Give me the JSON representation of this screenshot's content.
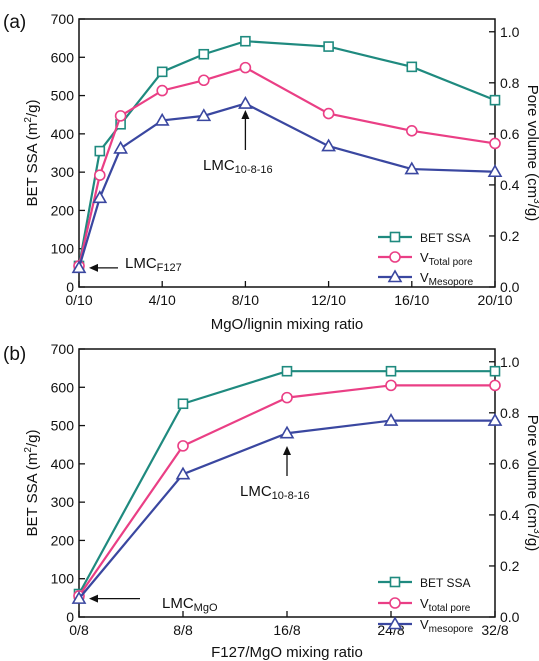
{
  "chart_data": [
    {
      "type": "line",
      "panel_label": "(a)",
      "xlabel": "MgO/lignin mixing ratio",
      "ylabel_left": {
        "main": "BET SSA (m",
        "sup": "2",
        "end": "/g)"
      },
      "ylabel_right": {
        "main": "Pore volume (cm",
        "sup": "3",
        "end": "/g)"
      },
      "categories": [
        "0/10",
        "1/10",
        "2/10",
        "4/10",
        "6/10",
        "8/10",
        "12/10",
        "16/10",
        "20/10"
      ],
      "xticks": [
        "0/10",
        "4/10",
        "8/10",
        "12/10",
        "16/10",
        "20/10"
      ],
      "xlim": [
        0,
        20
      ],
      "x": [
        0,
        1,
        2,
        4,
        6,
        8,
        12,
        16,
        20
      ],
      "ylim_left": [
        0,
        700
      ],
      "yticks_left": [
        0,
        100,
        200,
        300,
        400,
        500,
        600,
        700
      ],
      "ylim_right": [
        0.0,
        1.05
      ],
      "yticks_right": [
        0.0,
        0.2,
        0.4,
        0.6,
        0.8,
        1.0
      ],
      "grid": false,
      "legend_position": "bottom-right",
      "series": [
        {
          "name": "BET SSA",
          "name_main": "BET SSA",
          "name_sub": "",
          "axis": "left",
          "color": "#1f8a7f",
          "marker": "square",
          "values": [
            55,
            355,
            425,
            562,
            608,
            642,
            628,
            575,
            488
          ]
        },
        {
          "name": "VTotal pore",
          "name_main": "V",
          "name_sub": "Total pore",
          "axis": "left",
          "color": "#ea3f85",
          "marker": "circle",
          "values": [
            55,
            292,
            447,
            513,
            540,
            573,
            453,
            408,
            375
          ]
        },
        {
          "name": "VMesopore",
          "name_main": "V",
          "name_sub": "Mesopore",
          "axis": "left",
          "color": "#3a47a0",
          "marker": "triangle",
          "values": [
            50,
            233,
            362,
            435,
            447,
            479,
            368,
            308,
            301
          ]
        }
      ],
      "annotations": [
        {
          "main": "LMC",
          "sub": "F127"
        },
        {
          "main": "LMC",
          "sub": "10-8-16"
        }
      ]
    },
    {
      "type": "line",
      "panel_label": "(b)",
      "xlabel": "F127/MgO mixing ratio",
      "ylabel_left": {
        "main": "BET SSA (m",
        "sup": "2",
        "end": "/g)"
      },
      "ylabel_right": {
        "main": "Pore volume (cm",
        "sup": "3",
        "end": "/g)"
      },
      "categories": [
        "0/8",
        "8/8",
        "16/8",
        "24/8",
        "32/8"
      ],
      "xticks": [
        "0/8",
        "8/8",
        "16/8",
        "24/8",
        "32/8"
      ],
      "xlim": [
        0,
        32
      ],
      "x": [
        0,
        8,
        16,
        24,
        32
      ],
      "ylim_left": [
        0,
        700
      ],
      "yticks_left": [
        0,
        100,
        200,
        300,
        400,
        500,
        600,
        700
      ],
      "ylim_right": [
        0.0,
        1.05
      ],
      "yticks_right": [
        0.0,
        0.2,
        0.4,
        0.6,
        0.8,
        1.0
      ],
      "grid": false,
      "legend_position": "bottom-right",
      "series": [
        {
          "name": "BET SSA",
          "name_main": "BET SSA",
          "name_sub": "",
          "axis": "left",
          "color": "#1f8a7f",
          "marker": "square",
          "values": [
            60,
            557,
            642,
            642,
            642
          ]
        },
        {
          "name": "Vtotal pore",
          "name_main": "V",
          "name_sub": "total pore",
          "axis": "left",
          "color": "#ea3f85",
          "marker": "circle",
          "values": [
            55,
            447,
            573,
            605,
            605
          ]
        },
        {
          "name": "Vmesopore",
          "name_main": "V",
          "name_sub": "mesopore",
          "axis": "left",
          "color": "#3a47a0",
          "marker": "triangle",
          "values": [
            48,
            373,
            480,
            513,
            513
          ]
        }
      ],
      "annotations": [
        {
          "main": "LMC",
          "sub": "10-8-16"
        },
        {
          "main": "LMC",
          "sub": "MgO"
        }
      ]
    }
  ]
}
